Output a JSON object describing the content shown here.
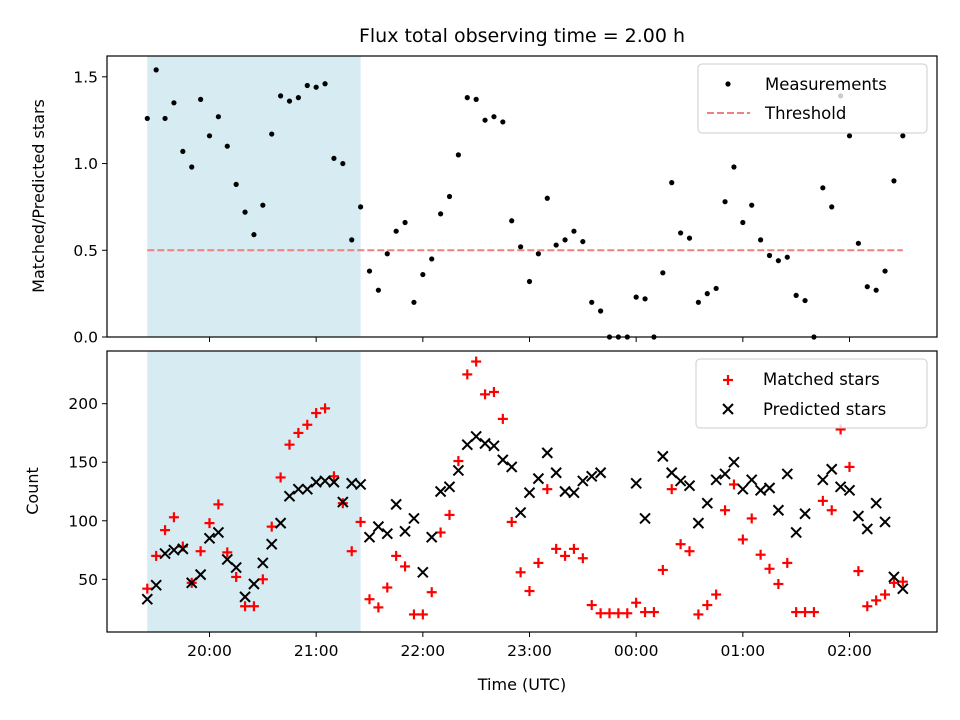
{
  "chart_data": [
    {
      "type": "scatter",
      "title": "Flux total observing time = 2.00 h",
      "ylabel": "Matched/Predicted stars",
      "xlabel": "",
      "ylim": [
        0,
        1.62
      ],
      "yticks": [
        "0.0",
        "0.5",
        "1.0",
        "1.5"
      ],
      "highlight_span": [
        "19:25",
        "21:25"
      ],
      "highlight_color": "#add8e6",
      "legend": {
        "placement": "top-right",
        "entries": [
          "Measurements",
          "Threshold"
        ]
      },
      "series": [
        {
          "name": "Measurements",
          "color": "#000000",
          "marker": "dot",
          "x": [
            "19:25",
            "19:30",
            "19:35",
            "19:40",
            "19:45",
            "19:50",
            "19:55",
            "20:00",
            "20:05",
            "20:10",
            "20:15",
            "20:20",
            "20:25",
            "20:30",
            "20:35",
            "20:40",
            "20:45",
            "20:50",
            "20:55",
            "21:00",
            "21:05",
            "21:10",
            "21:15",
            "21:20",
            "21:25",
            "21:30",
            "21:35",
            "21:40",
            "21:45",
            "21:50",
            "21:55",
            "22:00",
            "22:05",
            "22:10",
            "22:15",
            "22:20",
            "22:25",
            "22:30",
            "22:35",
            "22:40",
            "22:45",
            "22:50",
            "22:55",
            "23:00",
            "23:05",
            "23:10",
            "23:15",
            "23:20",
            "23:25",
            "23:30",
            "23:35",
            "23:40",
            "23:45",
            "23:50",
            "23:55",
            "00:00",
            "00:05",
            "00:10",
            "00:15",
            "00:20",
            "00:25",
            "00:30",
            "00:35",
            "00:40",
            "00:45",
            "00:50",
            "00:55",
            "01:00",
            "01:05",
            "01:10",
            "01:15",
            "01:20",
            "01:25",
            "01:30",
            "01:35",
            "01:40",
            "01:45",
            "01:50",
            "01:55",
            "02:00",
            "02:05",
            "02:10",
            "02:15",
            "02:20",
            "02:25",
            "02:30"
          ],
          "y": [
            1.26,
            1.54,
            1.26,
            1.35,
            1.07,
            0.98,
            1.37,
            1.16,
            1.27,
            1.1,
            0.88,
            0.72,
            0.59,
            0.76,
            1.17,
            1.39,
            1.36,
            1.38,
            1.45,
            1.44,
            1.46,
            1.03,
            1.0,
            0.56,
            0.75,
            0.38,
            0.27,
            0.48,
            0.61,
            0.66,
            0.2,
            0.36,
            0.45,
            0.71,
            0.81,
            1.05,
            1.38,
            1.37,
            1.25,
            1.27,
            1.24,
            0.67,
            0.52,
            0.32,
            0.48,
            0.8,
            0.53,
            0.56,
            0.61,
            0.55,
            0.2,
            0.15,
            0.0,
            0.0,
            0.0,
            0.23,
            0.22,
            0.0,
            0.37,
            0.89,
            0.6,
            0.57,
            0.2,
            0.25,
            0.28,
            0.78,
            0.98,
            0.66,
            0.76,
            0.56,
            0.47,
            0.44,
            0.46,
            0.24,
            0.21,
            0.0,
            0.86,
            0.75,
            1.39,
            1.16,
            0.54,
            0.29,
            0.27,
            0.38,
            0.9,
            1.16
          ]
        },
        {
          "name": "Threshold",
          "color": "#f08080",
          "style": "dashed",
          "x": [
            "19:25",
            "02:30"
          ],
          "y": [
            0.5,
            0.5
          ]
        }
      ]
    },
    {
      "type": "scatter",
      "title": "",
      "ylabel": "Count",
      "xlabel": "Time (UTC)",
      "ylim": [
        5,
        245
      ],
      "yticks": [
        "50",
        "100",
        "150",
        "200"
      ],
      "xticks": [
        "20:00",
        "21:00",
        "22:00",
        "23:00",
        "00:00",
        "01:00",
        "02:00"
      ],
      "highlight_span": [
        "19:25",
        "21:25"
      ],
      "highlight_color": "#add8e6",
      "legend": {
        "placement": "top-right",
        "entries": [
          "Matched stars",
          "Predicted stars"
        ]
      },
      "series": [
        {
          "name": "Matched stars",
          "color": "#ff0000",
          "marker": "plus",
          "x": [
            "19:25",
            "19:30",
            "19:35",
            "19:40",
            "19:45",
            "19:50",
            "19:55",
            "20:00",
            "20:05",
            "20:10",
            "20:15",
            "20:20",
            "20:25",
            "20:30",
            "20:35",
            "20:40",
            "20:45",
            "20:50",
            "20:55",
            "21:00",
            "21:05",
            "21:10",
            "21:15",
            "21:20",
            "21:25",
            "21:30",
            "21:35",
            "21:40",
            "21:45",
            "21:50",
            "21:55",
            "22:00",
            "22:05",
            "22:10",
            "22:15",
            "22:20",
            "22:25",
            "22:30",
            "22:35",
            "22:40",
            "22:45",
            "22:50",
            "22:55",
            "23:00",
            "23:05",
            "23:10",
            "23:15",
            "23:20",
            "23:25",
            "23:30",
            "23:35",
            "23:40",
            "23:45",
            "23:50",
            "23:55",
            "00:00",
            "00:05",
            "00:10",
            "00:15",
            "00:20",
            "00:25",
            "00:30",
            "00:35",
            "00:40",
            "00:45",
            "00:50",
            "00:55",
            "01:00",
            "01:05",
            "01:10",
            "01:15",
            "01:20",
            "01:25",
            "01:30",
            "01:35",
            "01:40",
            "01:45",
            "01:50",
            "01:55",
            "02:00",
            "02:05",
            "02:10",
            "02:15",
            "02:20",
            "02:25",
            "02:30"
          ],
          "y": [
            42,
            70,
            92,
            103,
            78,
            47,
            74,
            98,
            114,
            73,
            52,
            27,
            27,
            50,
            95,
            137,
            165,
            175,
            182,
            192,
            196,
            138,
            115,
            74,
            99,
            33,
            26,
            43,
            70,
            61,
            20,
            20,
            39,
            90,
            105,
            151,
            225,
            236,
            208,
            210,
            187,
            99,
            56,
            40,
            64,
            127,
            76,
            70,
            76,
            68,
            28,
            21,
            21,
            21,
            21,
            30,
            22,
            22,
            58,
            127,
            80,
            74,
            20,
            28,
            37,
            109,
            131,
            84,
            102,
            71,
            59,
            46,
            64,
            22,
            22,
            22,
            117,
            109,
            178,
            146,
            57,
            27,
            32,
            37,
            47,
            48
          ]
        },
        {
          "name": "Predicted stars",
          "color": "#000000",
          "marker": "x",
          "x": [
            "19:25",
            "19:30",
            "19:35",
            "19:40",
            "19:45",
            "19:50",
            "19:55",
            "20:00",
            "20:05",
            "20:10",
            "20:15",
            "20:20",
            "20:25",
            "20:30",
            "20:35",
            "20:40",
            "20:45",
            "20:50",
            "20:55",
            "21:00",
            "21:05",
            "21:10",
            "21:15",
            "21:20",
            "21:25",
            "21:30",
            "21:35",
            "21:40",
            "21:45",
            "21:50",
            "21:55",
            "22:00",
            "22:05",
            "22:10",
            "22:15",
            "22:20",
            "22:25",
            "22:30",
            "22:35",
            "22:40",
            "22:45",
            "22:50",
            "22:55",
            "23:00",
            "23:05",
            "23:10",
            "23:15",
            "23:20",
            "23:25",
            "23:30",
            "23:35",
            "23:40",
            "23:45",
            "23:50",
            "23:55",
            "00:00",
            "00:05",
            "00:10",
            "00:15",
            "00:20",
            "00:25",
            "00:30",
            "00:35",
            "00:40",
            "00:45",
            "00:50",
            "00:55",
            "01:00",
            "01:05",
            "01:10",
            "01:15",
            "01:20",
            "01:25",
            "01:30",
            "01:35",
            "01:40",
            "01:45",
            "01:50",
            "01:55",
            "02:00",
            "02:05",
            "02:10",
            "02:15",
            "02:20",
            "02:25",
            "02:30"
          ],
          "y": [
            33,
            45,
            72,
            75,
            76,
            47,
            54,
            85,
            90,
            67,
            60,
            35,
            46,
            64,
            80,
            98,
            121,
            127,
            127,
            133,
            134,
            133,
            116,
            132,
            131,
            86,
            95,
            89,
            114,
            91,
            102,
            56,
            86,
            125,
            129,
            143,
            165,
            172,
            166,
            164,
            152,
            146,
            107,
            124,
            136,
            158,
            141,
            125,
            124,
            134,
            138,
            141,
            null,
            null,
            null,
            132,
            102,
            null,
            155,
            141,
            134,
            130,
            98,
            115,
            135,
            140,
            150,
            127,
            135,
            126,
            128,
            109,
            140,
            90,
            106,
            null,
            135,
            144,
            129,
            126,
            104,
            93,
            115,
            99,
            52,
            42
          ]
        }
      ]
    }
  ]
}
